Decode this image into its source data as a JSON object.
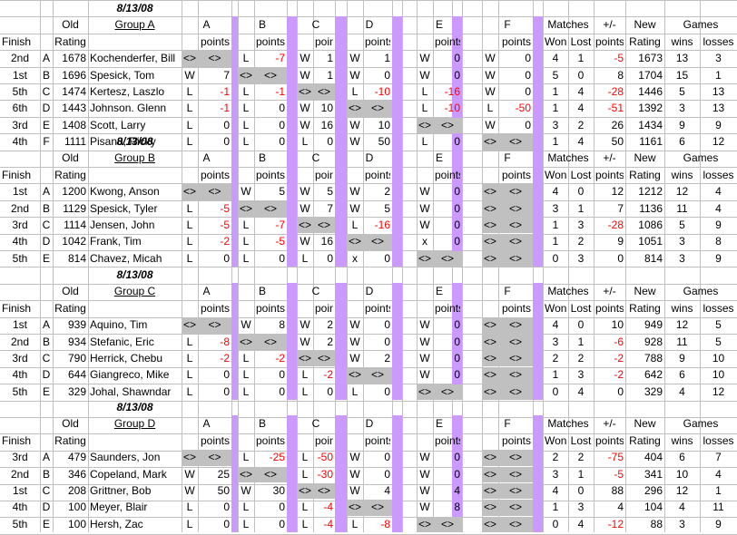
{
  "sheet": {
    "header": {
      "old": "Old",
      "rating": "Rating",
      "finish": "Finish",
      "points": "points",
      "matches": "Matches",
      "won": "Won",
      "lost": "Lost",
      "plusminus": "+/-",
      "new": "New",
      "new_rating": "Rating",
      "games": "Games",
      "wins": "wins",
      "losses": "losses",
      "cols": [
        "A",
        "B",
        "C",
        "D",
        "E",
        "F"
      ]
    },
    "groups": [
      {
        "date": "8/13/08",
        "name": "Group A",
        "players": [
          {
            "finish": "2nd",
            "seed": "A",
            "rating": "1678",
            "name": "Kochenderfer, Bill",
            "res": [
              [
                "<>",
                "<>"
              ],
              [
                "L",
                "-7"
              ],
              [
                "W",
                "1"
              ],
              [
                "W",
                "1"
              ],
              [
                "W",
                "0"
              ],
              [
                "W",
                "0"
              ]
            ],
            "won": "4",
            "lost": "1",
            "points": "-5",
            "new": "1673",
            "wins": "13",
            "losses": "3"
          },
          {
            "finish": "1st",
            "seed": "B",
            "rating": "1696",
            "name": "Spesick, Tom",
            "res": [
              [
                "W",
                "7"
              ],
              [
                "<>",
                "<>"
              ],
              [
                "W",
                "1"
              ],
              [
                "W",
                "0"
              ],
              [
                "W",
                "0"
              ],
              [
                "W",
                "0"
              ]
            ],
            "won": "5",
            "lost": "0",
            "points": "8",
            "new": "1704",
            "wins": "15",
            "losses": "1"
          },
          {
            "finish": "5th",
            "seed": "C",
            "rating": "1474",
            "name": "Kertesz, Laszlo",
            "res": [
              [
                "L",
                "-1"
              ],
              [
                "L",
                "-1"
              ],
              [
                "<>",
                "<>"
              ],
              [
                "L",
                "-10"
              ],
              [
                "L",
                "-16"
              ],
              [
                "W",
                "0"
              ]
            ],
            "won": "1",
            "lost": "4",
            "points": "-28",
            "new": "1446",
            "wins": "5",
            "losses": "13"
          },
          {
            "finish": "6th",
            "seed": "D",
            "rating": "1443",
            "name": "Johnson. Glenn",
            "res": [
              [
                "L",
                "-1"
              ],
              [
                "L",
                "0"
              ],
              [
                "W",
                "10"
              ],
              [
                "<>",
                "<>"
              ],
              [
                "L",
                "-10"
              ],
              [
                "L",
                "-50"
              ]
            ],
            "won": "1",
            "lost": "4",
            "points": "-51",
            "new": "1392",
            "wins": "3",
            "losses": "13"
          },
          {
            "finish": "3rd",
            "seed": "E",
            "rating": "1408",
            "name": "Scott, Larry",
            "res": [
              [
                "L",
                "0"
              ],
              [
                "L",
                "0"
              ],
              [
                "W",
                "16"
              ],
              [
                "W",
                "10"
              ],
              [
                "<>",
                "<>"
              ],
              [
                "W",
                "0"
              ]
            ],
            "won": "3",
            "lost": "2",
            "points": "26",
            "new": "1434",
            "wins": "9",
            "losses": "9"
          },
          {
            "finish": "4th",
            "seed": "F",
            "rating": "1111",
            "name": "Pisanu, Ricky",
            "res": [
              [
                "L",
                "0"
              ],
              [
                "L",
                "0"
              ],
              [
                "L",
                "0"
              ],
              [
                "W",
                "50"
              ],
              [
                "L",
                "0"
              ],
              [
                "<>",
                "<>"
              ]
            ],
            "won": "1",
            "lost": "4",
            "points": "50",
            "new": "1161",
            "wins": "6",
            "losses": "12"
          }
        ]
      },
      {
        "date": "8/13/08",
        "name": "Group B",
        "players": [
          {
            "finish": "1st",
            "seed": "A",
            "rating": "1200",
            "name": "Kwong, Anson",
            "res": [
              [
                "<>",
                "<>"
              ],
              [
                "W",
                "5"
              ],
              [
                "W",
                "5"
              ],
              [
                "W",
                "2"
              ],
              [
                "W",
                "0"
              ],
              [
                "<>",
                "<>"
              ]
            ],
            "won": "4",
            "lost": "0",
            "points": "12",
            "new": "1212",
            "wins": "12",
            "losses": "4"
          },
          {
            "finish": "2nd",
            "seed": "B",
            "rating": "1129",
            "name": "Spesick, Tyler",
            "res": [
              [
                "L",
                "-5"
              ],
              [
                "<>",
                "<>"
              ],
              [
                "W",
                "7"
              ],
              [
                "W",
                "5"
              ],
              [
                "W",
                "0"
              ],
              [
                "<>",
                "<>"
              ]
            ],
            "won": "3",
            "lost": "1",
            "points": "7",
            "new": "1136",
            "wins": "11",
            "losses": "4"
          },
          {
            "finish": "3rd",
            "seed": "C",
            "rating": "1114",
            "name": "Jensen, John",
            "res": [
              [
                "L",
                "-5"
              ],
              [
                "L",
                "-7"
              ],
              [
                "<>",
                "<>"
              ],
              [
                "L",
                "-16"
              ],
              [
                "W",
                "0"
              ],
              [
                "<>",
                "<>"
              ]
            ],
            "won": "1",
            "lost": "3",
            "points": "-28",
            "new": "1086",
            "wins": "5",
            "losses": "9"
          },
          {
            "finish": "4th",
            "seed": "D",
            "rating": "1042",
            "name": "Frank, Tim",
            "res": [
              [
                "L",
                "-2"
              ],
              [
                "L",
                "-5"
              ],
              [
                "W",
                "16"
              ],
              [
                "<>",
                "<>"
              ],
              [
                "x",
                "0"
              ],
              [
                "<>",
                "<>"
              ]
            ],
            "won": "1",
            "lost": "2",
            "points": "9",
            "new": "1051",
            "wins": "3",
            "losses": "8"
          },
          {
            "finish": "5th",
            "seed": "E",
            "rating": "814",
            "name": "Chavez, Micah",
            "res": [
              [
                "L",
                "0"
              ],
              [
                "L",
                "0"
              ],
              [
                "L",
                "0"
              ],
              [
                "x",
                "0"
              ],
              [
                "<>",
                "<>"
              ],
              [
                "<>",
                "<>"
              ]
            ],
            "won": "0",
            "lost": "3",
            "points": "0",
            "new": "814",
            "wins": "3",
            "losses": "9"
          }
        ]
      },
      {
        "date": "8/13/08",
        "name": "Group C",
        "players": [
          {
            "finish": "1st",
            "seed": "A",
            "rating": "939",
            "name": "Aquino, Tim",
            "res": [
              [
                "<>",
                "<>"
              ],
              [
                "W",
                "8"
              ],
              [
                "W",
                "2"
              ],
              [
                "W",
                "0"
              ],
              [
                "W",
                "0"
              ],
              [
                "<>",
                "<>"
              ]
            ],
            "won": "4",
            "lost": "0",
            "points": "10",
            "new": "949",
            "wins": "12",
            "losses": "5"
          },
          {
            "finish": "2nd",
            "seed": "B",
            "rating": "934",
            "name": "Stefanic, Eric",
            "res": [
              [
                "L",
                "-8"
              ],
              [
                "<>",
                "<>"
              ],
              [
                "W",
                "2"
              ],
              [
                "W",
                "0"
              ],
              [
                "W",
                "0"
              ],
              [
                "<>",
                "<>"
              ]
            ],
            "won": "3",
            "lost": "1",
            "points": "-6",
            "new": "928",
            "wins": "11",
            "losses": "5"
          },
          {
            "finish": "3rd",
            "seed": "C",
            "rating": "790",
            "name": "Herrick, Chebu",
            "res": [
              [
                "L",
                "-2"
              ],
              [
                "L",
                "-2"
              ],
              [
                "<>",
                "<>"
              ],
              [
                "W",
                "2"
              ],
              [
                "W",
                "0"
              ],
              [
                "<>",
                "<>"
              ]
            ],
            "won": "2",
            "lost": "2",
            "points": "-2",
            "new": "788",
            "wins": "9",
            "losses": "10"
          },
          {
            "finish": "4th",
            "seed": "D",
            "rating": "644",
            "name": "Giangreco, Mike",
            "res": [
              [
                "L",
                "0"
              ],
              [
                "L",
                "0"
              ],
              [
                "L",
                "-2"
              ],
              [
                "<>",
                "<>"
              ],
              [
                "W",
                "0"
              ],
              [
                "<>",
                "<>"
              ]
            ],
            "won": "1",
            "lost": "3",
            "points": "-2",
            "new": "642",
            "wins": "6",
            "losses": "10"
          },
          {
            "finish": "5th",
            "seed": "E",
            "rating": "329",
            "name": "Johal, Shawndar",
            "res": [
              [
                "L",
                "0"
              ],
              [
                "L",
                "0"
              ],
              [
                "L",
                "0"
              ],
              [
                "L",
                "0"
              ],
              [
                "<>",
                "<>"
              ],
              [
                "<>",
                "<>"
              ]
            ],
            "won": "0",
            "lost": "4",
            "points": "0",
            "new": "329",
            "wins": "4",
            "losses": "12"
          }
        ]
      },
      {
        "date": "8/13/08",
        "name": "Group D",
        "players": [
          {
            "finish": "3rd",
            "seed": "A",
            "rating": "479",
            "name": "Saunders, Jon",
            "res": [
              [
                "<>",
                "<>"
              ],
              [
                "L",
                "-25"
              ],
              [
                "L",
                "-50"
              ],
              [
                "W",
                "0"
              ],
              [
                "W",
                "0"
              ],
              [
                "<>",
                "<>"
              ]
            ],
            "won": "2",
            "lost": "2",
            "points": "-75",
            "new": "404",
            "wins": "6",
            "losses": "7"
          },
          {
            "finish": "2nd",
            "seed": "B",
            "rating": "346",
            "name": "Copeland, Mark",
            "res": [
              [
                "W",
                "25"
              ],
              [
                "<>",
                "<>"
              ],
              [
                "L",
                "-30"
              ],
              [
                "W",
                "0"
              ],
              [
                "W",
                "0"
              ],
              [
                "<>",
                "<>"
              ]
            ],
            "won": "3",
            "lost": "1",
            "points": "-5",
            "new": "341",
            "wins": "10",
            "losses": "4"
          },
          {
            "finish": "1st",
            "seed": "C",
            "rating": "208",
            "name": "Grittner, Bob",
            "res": [
              [
                "W",
                "50"
              ],
              [
                "W",
                "30"
              ],
              [
                "<>",
                "<>"
              ],
              [
                "W",
                "4"
              ],
              [
                "W",
                "4"
              ],
              [
                "<>",
                "<>"
              ]
            ],
            "won": "4",
            "lost": "0",
            "points": "88",
            "new": "296",
            "wins": "12",
            "losses": "1"
          },
          {
            "finish": "4th",
            "seed": "D",
            "rating": "100",
            "name": "Meyer, Blair",
            "res": [
              [
                "L",
                "0"
              ],
              [
                "L",
                "0"
              ],
              [
                "L",
                "-4"
              ],
              [
                "<>",
                "<>"
              ],
              [
                "W",
                "8"
              ],
              [
                "<>",
                "<>"
              ]
            ],
            "won": "1",
            "lost": "3",
            "points": "4",
            "new": "104",
            "wins": "4",
            "losses": "11"
          },
          {
            "finish": "5th",
            "seed": "E",
            "rating": "100",
            "name": "Hersh, Zac",
            "res": [
              [
                "L",
                "0"
              ],
              [
                "L",
                "0"
              ],
              [
                "L",
                "-4"
              ],
              [
                "L",
                "-8"
              ],
              [
                "<>",
                "<>"
              ],
              [
                "<>",
                "<>"
              ]
            ],
            "won": "0",
            "lost": "4",
            "points": "-12",
            "new": "88",
            "wins": "3",
            "losses": "9"
          }
        ]
      }
    ]
  }
}
